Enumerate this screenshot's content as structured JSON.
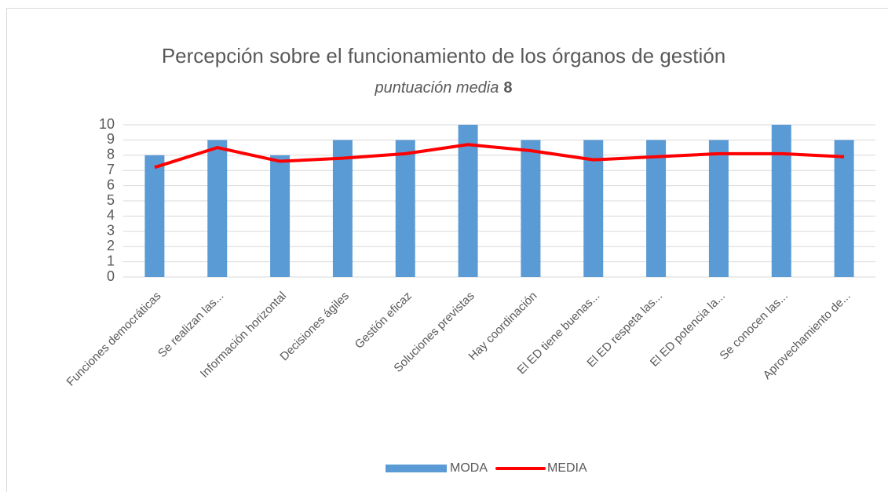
{
  "chart_data": {
    "type": "bar_line",
    "title": "Percepción sobre el funcionamiento de los órganos de gestión",
    "subtitle": [
      "puntuación media",
      "8"
    ],
    "categories": [
      "Funciones democráticas",
      "Se realizan las...",
      "Información horizontal",
      "Decisiones ágiles",
      "Gestión eficaz",
      "Soluciones previstas",
      "Hay coordinación",
      "El ED tiene buenas...",
      "El ED respeta las...",
      "El ED potencia la...",
      "Se conocen las...",
      "Aprovechamiento de..."
    ],
    "series": [
      {
        "name": "MODA",
        "type": "bar",
        "color": "#5b9bd5",
        "values": [
          8,
          9,
          8,
          9,
          9,
          10,
          9,
          9,
          9,
          9,
          10,
          9
        ]
      },
      {
        "name": "MEDIA",
        "type": "line",
        "color": "#ff0000",
        "values": [
          7.2,
          8.5,
          7.6,
          7.8,
          8.1,
          8.7,
          8.3,
          7.7,
          7.9,
          8.1,
          8.1,
          7.9
        ]
      }
    ],
    "ylim": [
      0,
      10
    ],
    "yticks": [
      0,
      1,
      2,
      3,
      4,
      5,
      6,
      7,
      8,
      9,
      10
    ],
    "grid": true,
    "legend": "bottom"
  }
}
